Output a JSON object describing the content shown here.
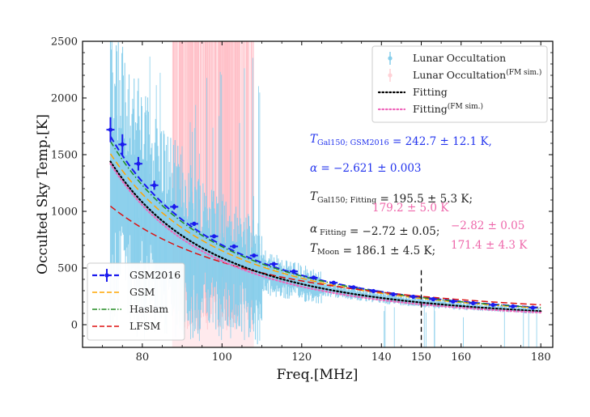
{
  "chart_data": {
    "type": "line",
    "xlabel": "Freq.[MHz]",
    "ylabel": "Occulted Sky Temp.[K]",
    "xlim": [
      65,
      183
    ],
    "ylim": [
      -200,
      2500
    ],
    "x_ticks": [
      80,
      100,
      120,
      140,
      150,
      160,
      180
    ],
    "y_ticks": [
      0,
      500,
      1000,
      1500,
      2000,
      2500
    ],
    "grid": false,
    "legend_upper": {
      "placement": "top-right",
      "entries": [
        {
          "label": "Lunar Occultation",
          "sup": "",
          "color": "#87ceeb",
          "style": "errorbar"
        },
        {
          "label": "Lunar Occultation",
          "sup": "(FM sim.)",
          "color": "#ffd1d6",
          "style": "errorbar"
        },
        {
          "label": "Fitting",
          "sup": "",
          "color": "#000000",
          "style": "dotted"
        },
        {
          "label": "Fitting",
          "sup": "(FM sim.)",
          "color": "#ee66bb",
          "style": "dotted"
        }
      ]
    },
    "legend_lower": {
      "placement": "bottom-left",
      "entries": [
        {
          "label": "GSM2016",
          "color": "#1a1aee",
          "style": "dashed-errorbar"
        },
        {
          "label": "GSM",
          "color": "#ffa500",
          "style": "dashed"
        },
        {
          "label": "Haslam",
          "color": "#228b22",
          "style": "dashdot"
        },
        {
          "label": "LFSM",
          "color": "#dd1111",
          "style": "dashed"
        }
      ]
    },
    "vline": {
      "x": 150,
      "style": "dashed",
      "color": "#000000"
    },
    "series": [
      {
        "name": "GSM2016",
        "T150": 242.7,
        "alpha": -2.621,
        "color": "#1a1aee",
        "style": "dashed",
        "x_range": [
          72,
          180
        ]
      },
      {
        "name": "GSM",
        "T150": 232,
        "alpha": -2.55,
        "color": "#ffa500",
        "style": "dashed",
        "x_range": [
          72,
          180
        ]
      },
      {
        "name": "Haslam",
        "T150": 240,
        "alpha": -2.6,
        "color": "#228b22",
        "style": "dashdot",
        "x_range": [
          72,
          180
        ]
      },
      {
        "name": "LFSM",
        "T150": 250,
        "alpha": -1.95,
        "color": "#dd1111",
        "style": "dashed",
        "x_range": [
          72,
          180
        ]
      },
      {
        "name": "Fitting",
        "T150": 195.5,
        "alpha": -2.72,
        "color": "#000000",
        "style": "dotted",
        "x_range": [
          72,
          180
        ]
      },
      {
        "name": "Fitting (FM sim.)",
        "T150": 179.2,
        "alpha": -2.82,
        "color": "#ee66bb",
        "style": "dotted",
        "x_range": [
          72,
          180
        ]
      }
    ],
    "gsm2016_markers": {
      "x": [
        72,
        75,
        79,
        83,
        88,
        93,
        98,
        103,
        108,
        113,
        118,
        123,
        128,
        133,
        138,
        143,
        148,
        153,
        158,
        163,
        168,
        173,
        178
      ],
      "y": [
        1720,
        1590,
        1420,
        1230,
        1040,
        890,
        780,
        690,
        610,
        535,
        470,
        415,
        370,
        330,
        297,
        268,
        247,
        225,
        205,
        190,
        175,
        162,
        150
      ],
      "err": [
        110,
        90,
        60,
        40,
        25,
        18,
        12,
        10,
        8,
        6,
        5,
        4,
        4,
        3,
        3,
        3,
        2,
        2,
        2,
        2,
        2,
        2,
        2
      ]
    },
    "lunar_occultation": {
      "color": "#87ceeb",
      "x_range": [
        72,
        180
      ],
      "note": "dense noisy measurement band"
    },
    "fm_band": {
      "color": "#ffd1d6",
      "x_range": [
        87.5,
        108
      ]
    },
    "annotations": [
      {
        "parts": [
          {
            "t": "T",
            "italic": true
          },
          {
            "t": "Gal150; GSM2016",
            "sub": true
          },
          {
            "t": " = 242.7 ± 12.1 K,"
          }
        ],
        "color": "#2233ee"
      },
      {
        "parts": [
          {
            "t": "α",
            "italic": true
          },
          {
            "t": " = −2.621 ± 0.003"
          }
        ],
        "color": "#2233ee"
      },
      {
        "parts": [
          {
            "t": "T",
            "italic": true
          },
          {
            "t": "Gal150; Fitting",
            "sub": true
          },
          {
            "t": " = 195.5 ± 5.3 K;"
          }
        ],
        "color": "#222222"
      },
      {
        "parts": [
          {
            "t": "179.2 ± 5.0 K"
          }
        ],
        "color": "#ee66aa"
      },
      {
        "parts": [
          {
            "t": "α",
            "italic": true
          },
          {
            "t": " Fitting",
            "sub": true
          },
          {
            "t": " = −2.72 ± 0.05;"
          }
        ],
        "color": "#222222"
      },
      {
        "parts": [
          {
            "t": "−2.82 ± 0.05"
          }
        ],
        "color": "#ee66aa"
      },
      {
        "parts": [
          {
            "t": "T",
            "italic": true
          },
          {
            "t": "Moon",
            "sub": true
          },
          {
            "t": " = 186.1 ± 4.5 K;"
          }
        ],
        "color": "#222222"
      },
      {
        "parts": [
          {
            "t": "171.4 ± 4.3 K"
          }
        ],
        "color": "#ee66aa"
      }
    ]
  }
}
